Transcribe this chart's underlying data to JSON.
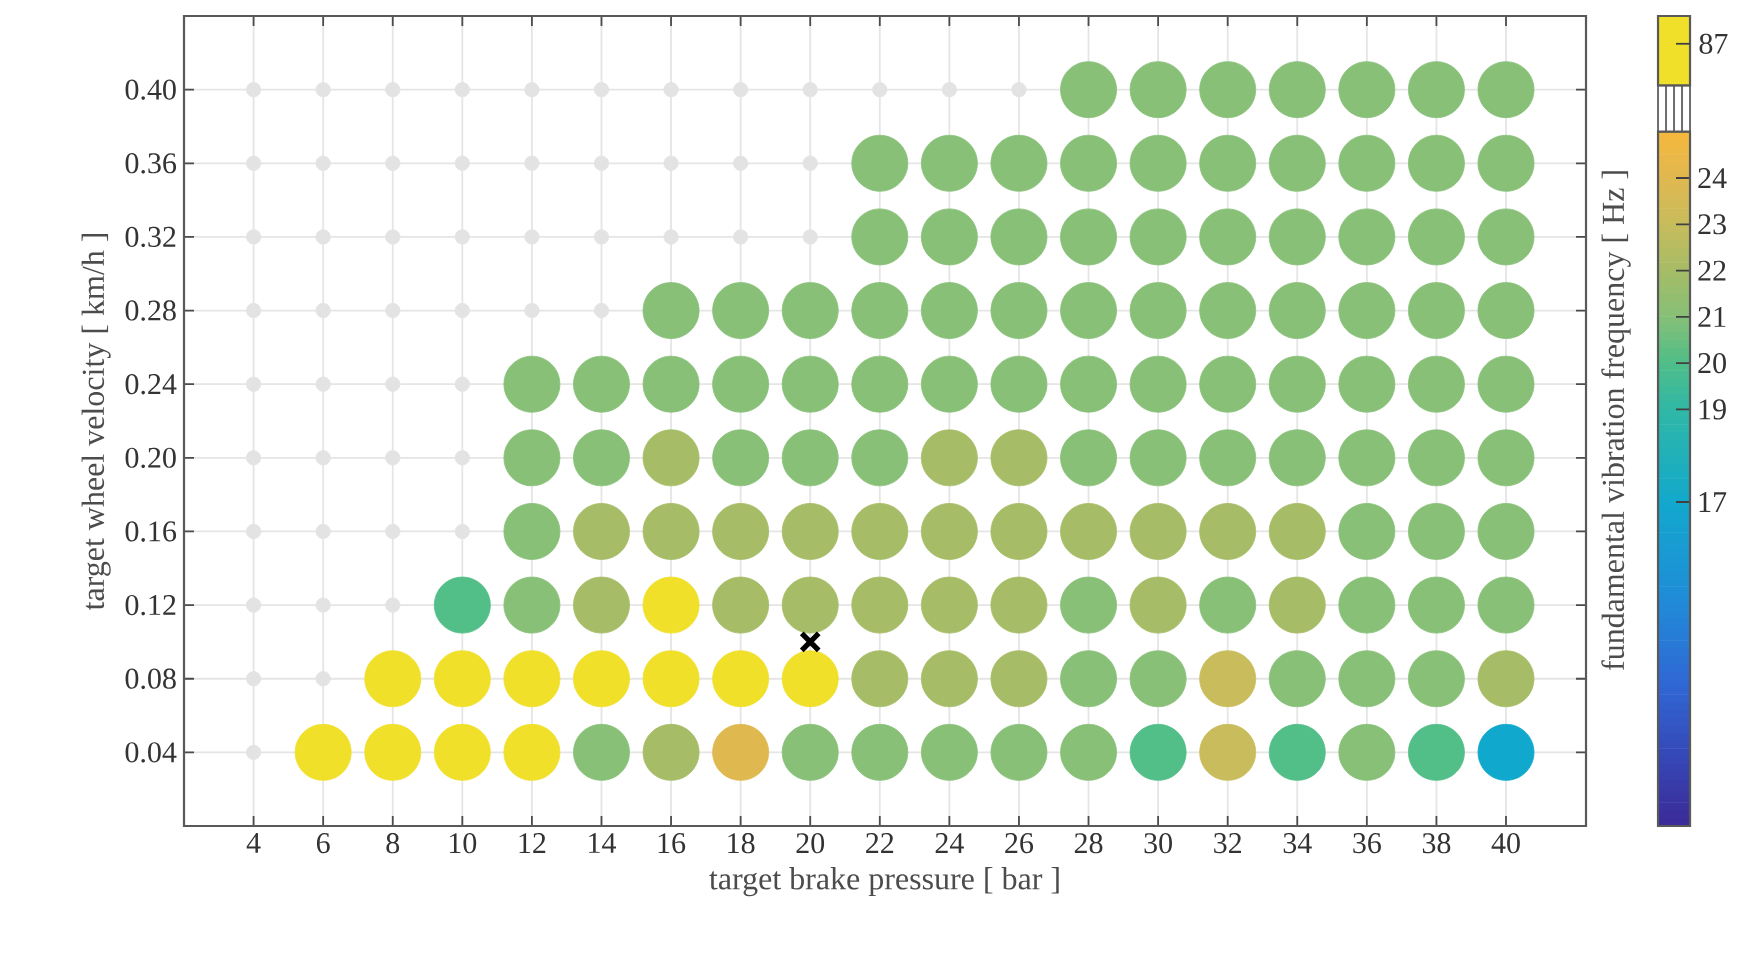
{
  "chart_data": {
    "type": "scatter",
    "xlabel": "target brake pressure  [ bar ]",
    "ylabel": "target wheel velocity  [ km/h ]",
    "clabel": "fundamental vibration frequency  [ Hz ]",
    "xlim": [
      2,
      42.3
    ],
    "ylim": [
      0,
      0.44
    ],
    "xticks": [
      4,
      6,
      8,
      10,
      12,
      14,
      16,
      18,
      20,
      22,
      24,
      26,
      28,
      30,
      32,
      34,
      36,
      38,
      40
    ],
    "yticks": [
      {
        "value": 0.04,
        "label": "0.04"
      },
      {
        "value": 0.08,
        "label": "0.08"
      },
      {
        "value": 0.12,
        "label": "0.12"
      },
      {
        "value": 0.16,
        "label": "0.16"
      },
      {
        "value": 0.2,
        "label": "0.20"
      },
      {
        "value": 0.24,
        "label": "0.24"
      },
      {
        "value": 0.28,
        "label": "0.28"
      },
      {
        "value": 0.32,
        "label": "0.32"
      },
      {
        "value": 0.36,
        "label": "0.36"
      },
      {
        "value": 0.4,
        "label": "0.40"
      }
    ],
    "clim": [
      10,
      25
    ],
    "cticks": [
      17,
      19,
      20,
      21,
      22,
      23,
      24
    ],
    "annotations": [
      "87"
    ],
    "grid": true,
    "marker": "circle",
    "series": [
      {
        "color": "#e3e3e3",
        "x": [
          4,
          4,
          6,
          4,
          6,
          8,
          4,
          6,
          8,
          10,
          4,
          6,
          8,
          10,
          4,
          6,
          8,
          10,
          4,
          6,
          8,
          10,
          12,
          14,
          4,
          6,
          8,
          10,
          12,
          14,
          16,
          18,
          20,
          4,
          6,
          8,
          10,
          12,
          14,
          16,
          18,
          20,
          4,
          6,
          8,
          10,
          12,
          14,
          16,
          18,
          20,
          22,
          24,
          26
        ],
        "values": [
          0.04,
          0.08,
          0.08,
          0.12,
          0.12,
          0.12,
          0.16,
          0.16,
          0.16,
          0.16,
          0.2,
          0.2,
          0.2,
          0.2,
          0.24,
          0.24,
          0.24,
          0.24,
          0.28,
          0.28,
          0.28,
          0.28,
          0.28,
          0.28,
          0.32,
          0.32,
          0.32,
          0.32,
          0.32,
          0.32,
          0.32,
          0.32,
          0.32,
          0.36,
          0.36,
          0.36,
          0.36,
          0.36,
          0.36,
          0.36,
          0.36,
          0.36,
          0.4,
          0.4,
          0.4,
          0.4,
          0.4,
          0.4,
          0.4,
          0.4,
          0.4,
          0.4,
          0.4,
          0.4
        ]
      },
      {
        "x": [
          6,
          8,
          10,
          12,
          14,
          16,
          18,
          20,
          22,
          24,
          26,
          28,
          30,
          32,
          34,
          36,
          38,
          40,
          8,
          10,
          12,
          14,
          16,
          18,
          20,
          22,
          24,
          26,
          28,
          30,
          32,
          34,
          36,
          38,
          40,
          10,
          12,
          14,
          16,
          18,
          20,
          22,
          24,
          26,
          28,
          30,
          32,
          34,
          36,
          38,
          40,
          12,
          14,
          16,
          18,
          20,
          22,
          24,
          26,
          28,
          30,
          32,
          34,
          36,
          38,
          40,
          12,
          14,
          16,
          18,
          20,
          22,
          24,
          26,
          28,
          30,
          32,
          34,
          36,
          38,
          40,
          12,
          14,
          16,
          18,
          20,
          22,
          24,
          26,
          28,
          30,
          32,
          34,
          36,
          38,
          40,
          16,
          18,
          20,
          22,
          24,
          26,
          28,
          30,
          32,
          34,
          36,
          38,
          40,
          22,
          24,
          26,
          28,
          30,
          32,
          34,
          36,
          38,
          40,
          22,
          24,
          26,
          28,
          30,
          32,
          34,
          36,
          38,
          40,
          28,
          30,
          32,
          34,
          36,
          38,
          40
        ],
        "values": [
          0.04,
          0.04,
          0.04,
          0.04,
          0.04,
          0.04,
          0.04,
          0.04,
          0.04,
          0.04,
          0.04,
          0.04,
          0.04,
          0.04,
          0.04,
          0.04,
          0.04,
          0.04,
          0.08,
          0.08,
          0.08,
          0.08,
          0.08,
          0.08,
          0.08,
          0.08,
          0.08,
          0.08,
          0.08,
          0.08,
          0.08,
          0.08,
          0.08,
          0.08,
          0.08,
          0.12,
          0.12,
          0.12,
          0.12,
          0.12,
          0.12,
          0.12,
          0.12,
          0.12,
          0.12,
          0.12,
          0.12,
          0.12,
          0.12,
          0.12,
          0.12,
          0.16,
          0.16,
          0.16,
          0.16,
          0.16,
          0.16,
          0.16,
          0.16,
          0.16,
          0.16,
          0.16,
          0.16,
          0.16,
          0.16,
          0.16,
          0.2,
          0.2,
          0.2,
          0.2,
          0.2,
          0.2,
          0.2,
          0.2,
          0.2,
          0.2,
          0.2,
          0.2,
          0.2,
          0.2,
          0.2,
          0.24,
          0.24,
          0.24,
          0.24,
          0.24,
          0.24,
          0.24,
          0.24,
          0.24,
          0.24,
          0.24,
          0.24,
          0.24,
          0.24,
          0.24,
          0.28,
          0.28,
          0.28,
          0.28,
          0.28,
          0.28,
          0.28,
          0.28,
          0.28,
          0.28,
          0.28,
          0.28,
          0.28,
          0.32,
          0.32,
          0.32,
          0.32,
          0.32,
          0.32,
          0.32,
          0.32,
          0.32,
          0.32,
          0.36,
          0.36,
          0.36,
          0.36,
          0.36,
          0.36,
          0.36,
          0.36,
          0.36,
          0.36,
          0.4,
          0.4,
          0.4,
          0.4,
          0.4,
          0.4,
          0.4
        ],
        "colors": [
          "#f0e02a",
          "#f0e02a",
          "#f0e02a",
          "#f0e02a",
          "#88c078",
          "#a6bc66",
          "#e0b850",
          "#88c078",
          "#88c078",
          "#88c078",
          "#88c078",
          "#88c078",
          "#52be88",
          "#c8bc5c",
          "#52be88",
          "#88c078",
          "#52be88",
          "#10a8cc",
          "#f0e02a",
          "#f0e02a",
          "#f0e02a",
          "#f0e02a",
          "#f0e02a",
          "#f0e02a",
          "#f0e02a",
          "#a6bc66",
          "#a6bc66",
          "#a6bc66",
          "#88c078",
          "#88c078",
          "#c8bc5c",
          "#88c078",
          "#88c078",
          "#88c078",
          "#a6bc66",
          "#52be88",
          "#88c078",
          "#a6bc66",
          "#f0e02a",
          "#a6bc66",
          "#a6bc66",
          "#a6bc66",
          "#a6bc66",
          "#a6bc66",
          "#88c078",
          "#a6bc66",
          "#88c078",
          "#a6bc66",
          "#88c078",
          "#88c078",
          "#88c078",
          "#88c078",
          "#a6bc66",
          "#a6bc66",
          "#a6bc66",
          "#a6bc66",
          "#a6bc66",
          "#a6bc66",
          "#a6bc66",
          "#a6bc66",
          "#a6bc66",
          "#a6bc66",
          "#a6bc66",
          "#88c078",
          "#88c078",
          "#88c078",
          "#88c078",
          "#88c078",
          "#a6bc66",
          "#88c078",
          "#88c078",
          "#88c078",
          "#a6bc66",
          "#a6bc66",
          "#88c078",
          "#88c078",
          "#88c078",
          "#88c078",
          "#88c078",
          "#88c078",
          "#88c078",
          "#88c078",
          "#88c078",
          "#88c078",
          "#88c078",
          "#88c078",
          "#88c078",
          "#88c078",
          "#88c078",
          "#88c078",
          "#88c078",
          "#88c078",
          "#88c078",
          "#88c078",
          "#88c078",
          "#88c078",
          "#88c078",
          "#88c078",
          "#88c078",
          "#88c078",
          "#88c078",
          "#88c078",
          "#88c078",
          "#88c078",
          "#88c078",
          "#88c078",
          "#88c078",
          "#88c078",
          "#88c078",
          "#88c078",
          "#88c078",
          "#88c078",
          "#88c078",
          "#88c078",
          "#88c078",
          "#88c078",
          "#88c078",
          "#88c078",
          "#88c078",
          "#88c078",
          "#88c078",
          "#88c078",
          "#88c078",
          "#88c078",
          "#88c078",
          "#88c078",
          "#88c078",
          "#88c078",
          "#88c078",
          "#88c078",
          "#88c078",
          "#88c078",
          "#88c078",
          "#88c078",
          "#88c078",
          "#88c078"
        ]
      },
      {
        "color": "#000000",
        "marker": "cross",
        "x": [
          20
        ],
        "values": [
          0.1
        ]
      }
    ]
  }
}
